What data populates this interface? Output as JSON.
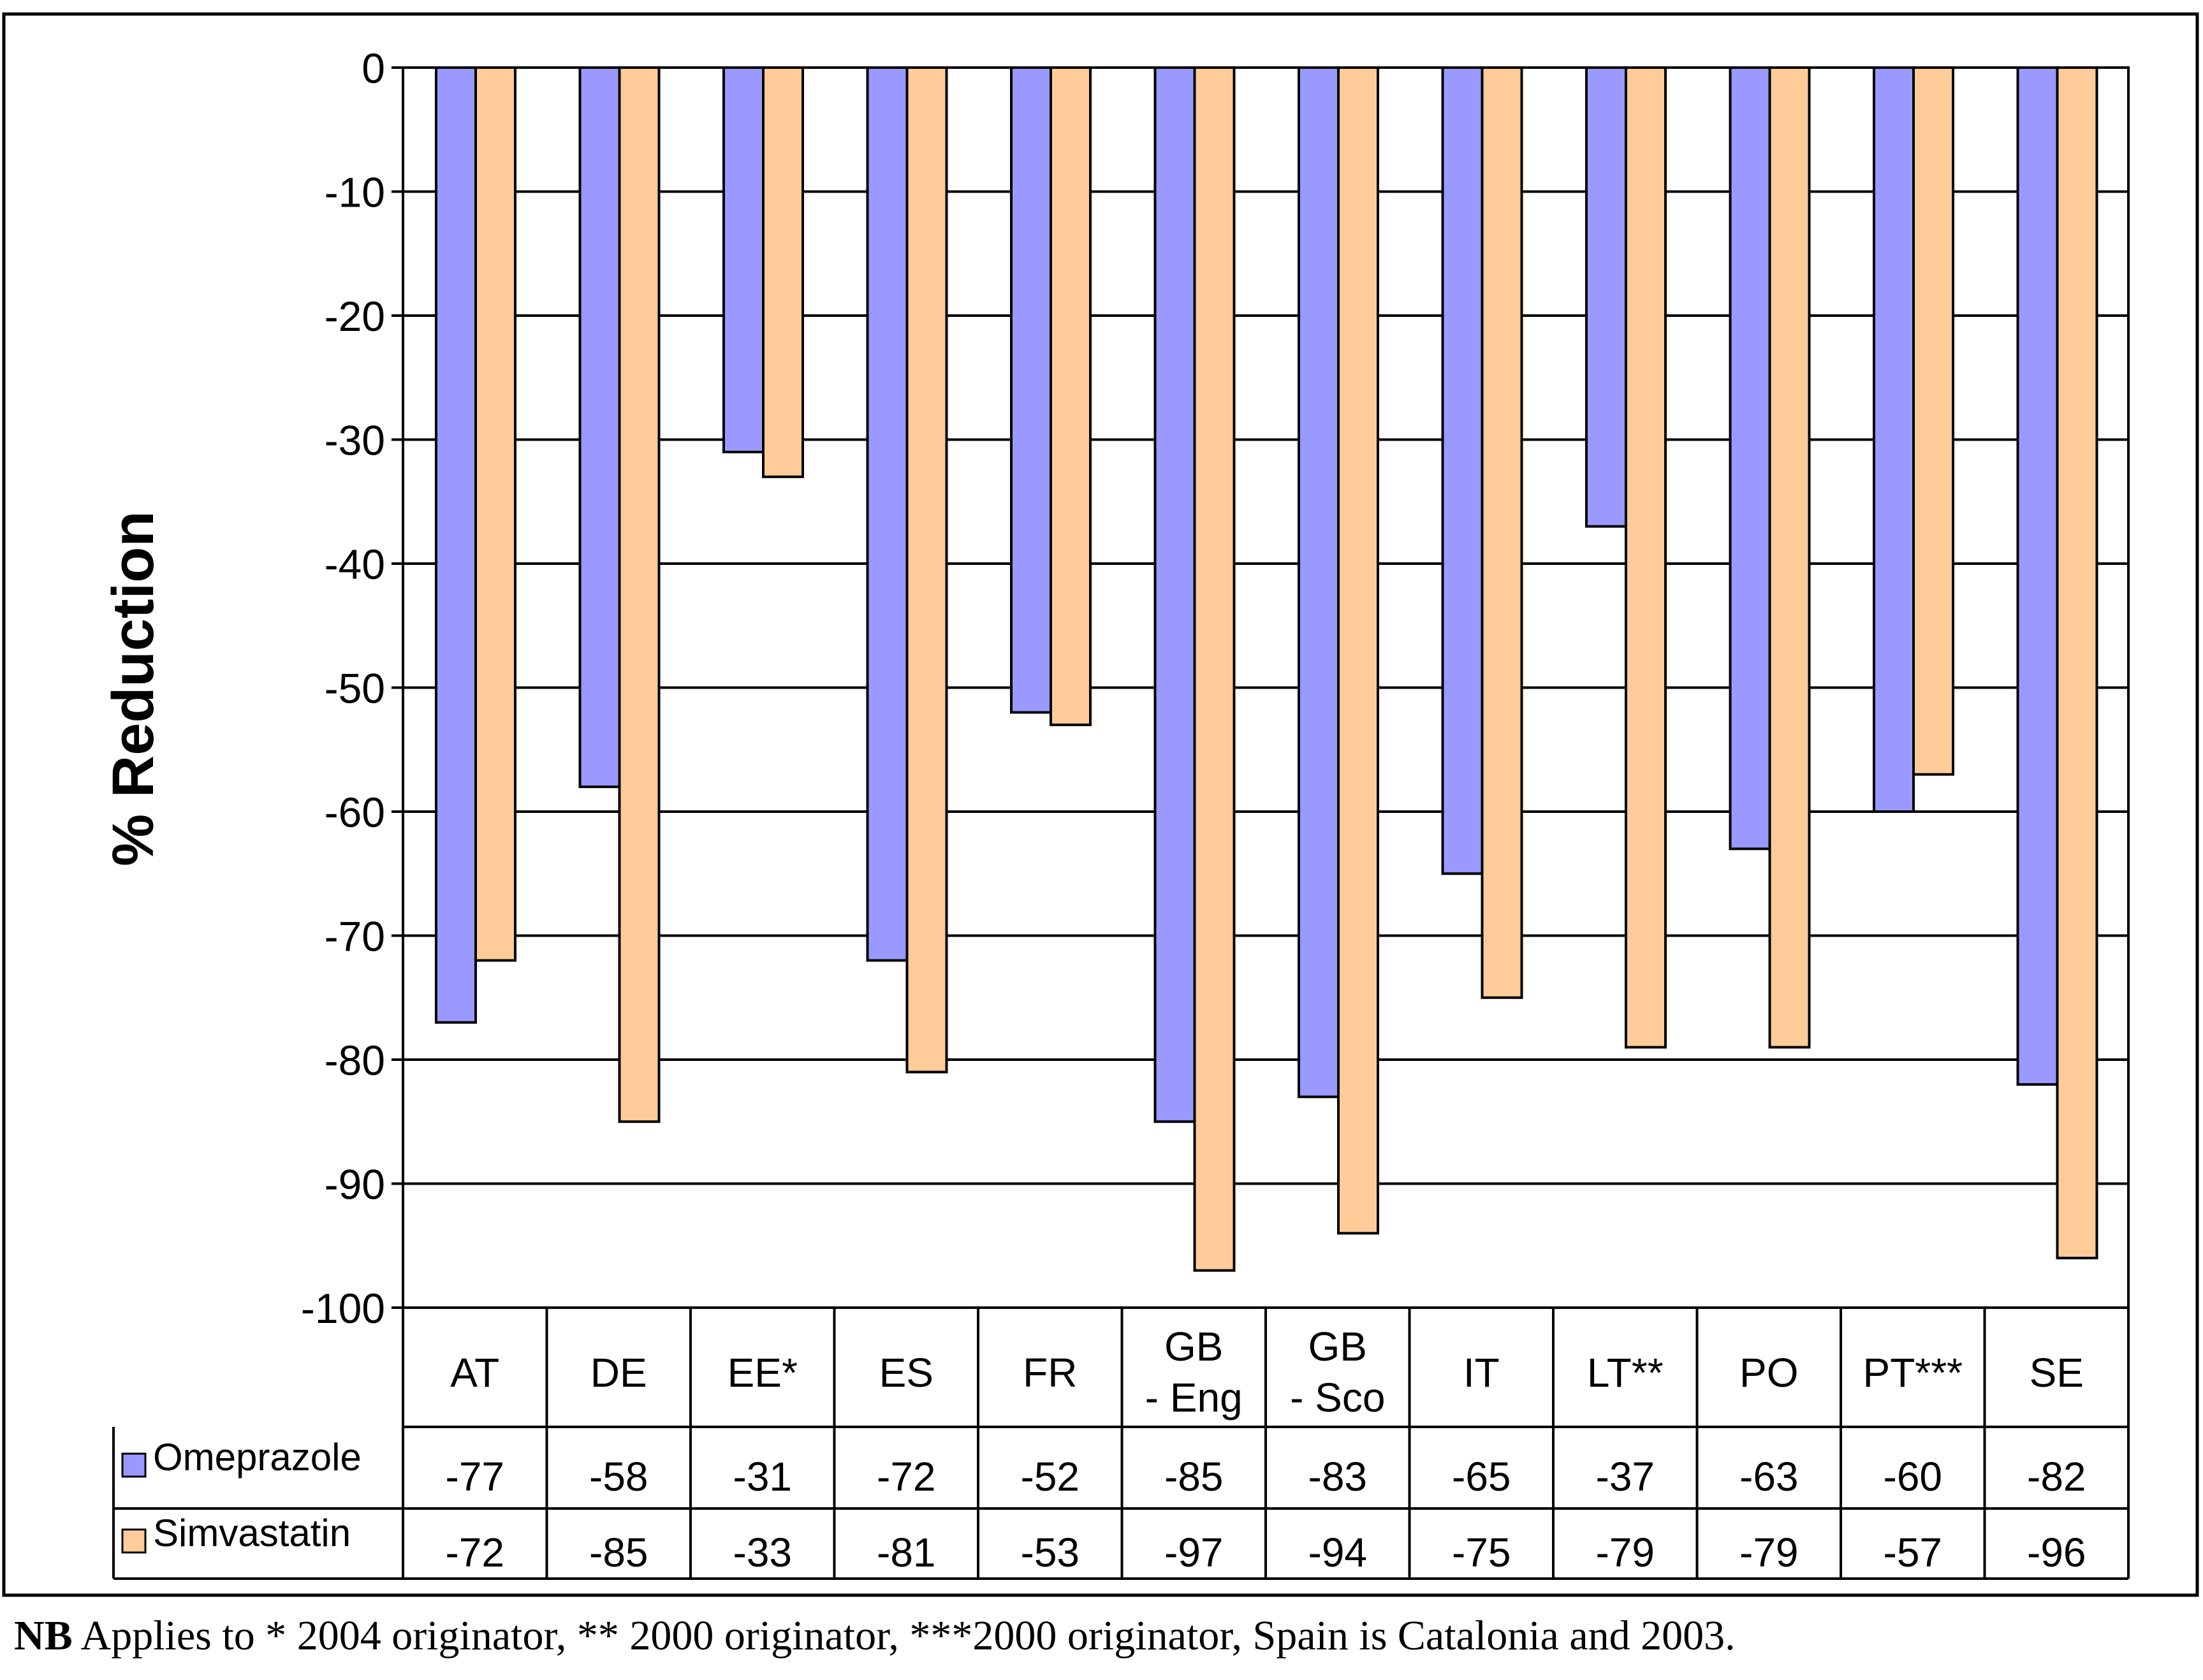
{
  "chart_data": {
    "type": "bar",
    "ylabel": "% Reduction",
    "ylim": [
      -100,
      0
    ],
    "yticks": [
      0,
      -10,
      -20,
      -30,
      -40,
      -50,
      -60,
      -70,
      -80,
      -90,
      -100
    ],
    "grid": true,
    "categories": [
      [
        "AT"
      ],
      [
        "DE"
      ],
      [
        "EE*"
      ],
      [
        "ES"
      ],
      [
        "FR"
      ],
      [
        "GB",
        "- Eng"
      ],
      [
        "GB",
        "- Sco"
      ],
      [
        "IT"
      ],
      [
        "LT**"
      ],
      [
        "PO"
      ],
      [
        "PT***"
      ],
      [
        "SE"
      ]
    ],
    "series": [
      {
        "name": "Omeprazole",
        "color": "#9999FF",
        "values": [
          -77,
          -58,
          -31,
          -72,
          -52,
          -85,
          -83,
          -65,
          -37,
          -63,
          -60,
          -82
        ]
      },
      {
        "name": "Simvastatin",
        "color": "#FFCC99",
        "values": [
          -72,
          -85,
          -33,
          -81,
          -53,
          -97,
          -94,
          -75,
          -79,
          -79,
          -57,
          -96
        ]
      }
    ],
    "data_table": true
  },
  "footnote": {
    "bold": "NB",
    "text": " Applies to * 2004 originator, ** 2000 originator, ***2000 originator, Spain is Catalonia and 2003."
  }
}
